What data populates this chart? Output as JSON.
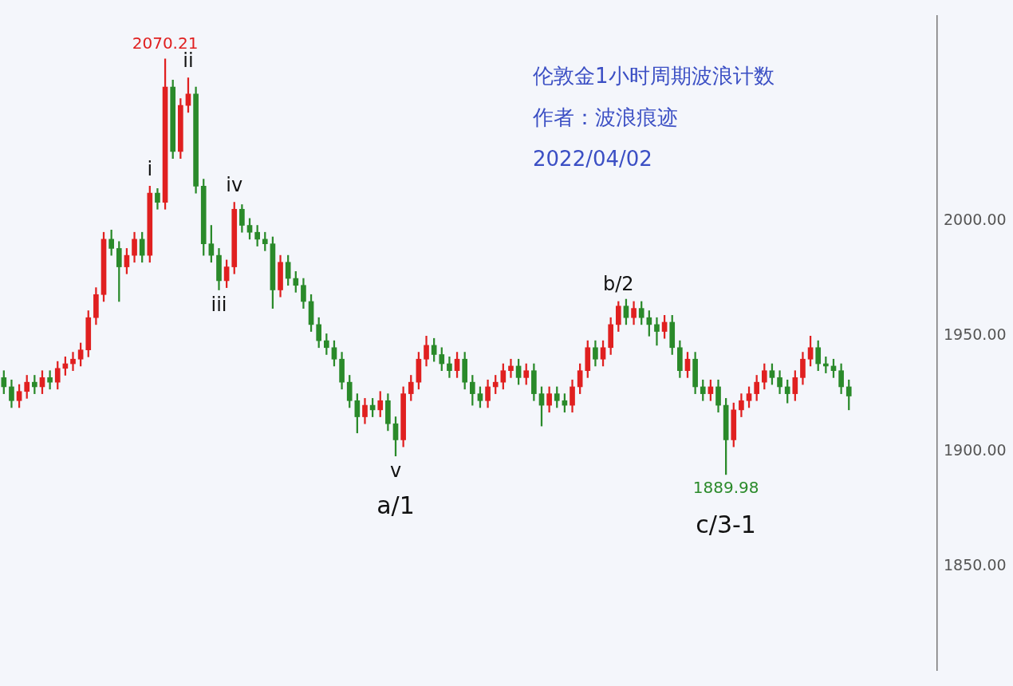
{
  "chart_data": {
    "type": "candlestick",
    "title": "伦敦金1小时周期波浪计数",
    "subtitle": "作者：波浪痕迹",
    "annotations": [
      "2022/04/02",
      {
        "text": "2070.21",
        "y": 2070.21
      },
      {
        "text": "i",
        "y": 2015
      },
      {
        "text": "ii",
        "y": 2062
      },
      {
        "text": "iii",
        "y": 1970
      },
      {
        "text": "iv",
        "y": 2008
      },
      {
        "text": "v",
        "y": 1898
      },
      {
        "text": "a/1",
        "y": 1898
      },
      {
        "text": "b/2",
        "y": 1965
      },
      {
        "text": "1889.98",
        "y": 1889.98
      },
      {
        "text": "c/3-1",
        "y": 1889.98
      }
    ],
    "categories": [
      null,
      null,
      null,
      null,
      null,
      null,
      null,
      null,
      null,
      null,
      null,
      null,
      null,
      null,
      null,
      null,
      null,
      null,
      null,
      null,
      null,
      null,
      null,
      null,
      null,
      null,
      null,
      null,
      null,
      null,
      null,
      null,
      null,
      null,
      null,
      null,
      null,
      null,
      null,
      null,
      null,
      null,
      null,
      null,
      null,
      null,
      null,
      null,
      null,
      null,
      null,
      null,
      null,
      null,
      null,
      null,
      null,
      null,
      null,
      null,
      null,
      null,
      null,
      null,
      null,
      null,
      null,
      null,
      null,
      null,
      null,
      null,
      null,
      null,
      null,
      null,
      null,
      null,
      null,
      null,
      null,
      null,
      null,
      null,
      null,
      null,
      null,
      null,
      null,
      null,
      null,
      null,
      null,
      null,
      null,
      null,
      null,
      null,
      null,
      null,
      null,
      null,
      null,
      null,
      null,
      null,
      null,
      null,
      null,
      null,
      null,
      null,
      null,
      null,
      null,
      null,
      null,
      null,
      null,
      null,
      null,
      null
    ],
    "ohlc": [
      [
        1932,
        1935,
        1925,
        1928
      ],
      [
        1928,
        1931,
        1919,
        1922
      ],
      [
        1922,
        1929,
        1919,
        1926
      ],
      [
        1926,
        1933,
        1923,
        1930
      ],
      [
        1930,
        1933,
        1925,
        1928
      ],
      [
        1928,
        1935,
        1925,
        1932
      ],
      [
        1932,
        1935,
        1927,
        1930
      ],
      [
        1930,
        1939,
        1927,
        1936
      ],
      [
        1936,
        1941,
        1933,
        1938
      ],
      [
        1938,
        1943,
        1935,
        1940
      ],
      [
        1940,
        1947,
        1937,
        1944
      ],
      [
        1944,
        1961,
        1941,
        1958
      ],
      [
        1958,
        1971,
        1955,
        1968
      ],
      [
        1968,
        1995,
        1965,
        1992
      ],
      [
        1992,
        1996,
        1985,
        1988
      ],
      [
        1988,
        1991,
        1965,
        1980
      ],
      [
        1980,
        1988,
        1977,
        1985
      ],
      [
        1985,
        1995,
        1982,
        1992
      ],
      [
        1992,
        1995,
        1982,
        1985
      ],
      [
        1985,
        2015,
        1982,
        2012
      ],
      [
        2012,
        2014,
        2005,
        2008
      ],
      [
        2008,
        2070.21,
        2005,
        2058
      ],
      [
        2058,
        2061,
        2027,
        2030
      ],
      [
        2030,
        2053,
        2027,
        2050
      ],
      [
        2050,
        2062,
        2047,
        2055
      ],
      [
        2055,
        2058,
        2012,
        2015
      ],
      [
        2015,
        2018,
        1985,
        1990
      ],
      [
        1990,
        1998,
        1982,
        1985
      ],
      [
        1985,
        1988,
        1970,
        1974
      ],
      [
        1974,
        1983,
        1971,
        1980
      ],
      [
        1980,
        2008,
        1977,
        2005
      ],
      [
        2005,
        2007,
        1995,
        1998
      ],
      [
        1998,
        2001,
        1992,
        1995
      ],
      [
        1995,
        1998,
        1989,
        1992
      ],
      [
        1992,
        1995,
        1987,
        1990
      ],
      [
        1990,
        1993,
        1962,
        1970
      ],
      [
        1970,
        1985,
        1967,
        1982
      ],
      [
        1982,
        1985,
        1972,
        1975
      ],
      [
        1975,
        1978,
        1969,
        1972
      ],
      [
        1972,
        1975,
        1962,
        1965
      ],
      [
        1965,
        1968,
        1952,
        1955
      ],
      [
        1955,
        1958,
        1945,
        1948
      ],
      [
        1948,
        1951,
        1942,
        1945
      ],
      [
        1945,
        1948,
        1937,
        1940
      ],
      [
        1940,
        1943,
        1927,
        1930
      ],
      [
        1930,
        1933,
        1919,
        1922
      ],
      [
        1922,
        1925,
        1908,
        1915
      ],
      [
        1915,
        1923,
        1912,
        1920
      ],
      [
        1920,
        1923,
        1915,
        1918
      ],
      [
        1918,
        1926,
        1915,
        1922
      ],
      [
        1922,
        1925,
        1909,
        1912
      ],
      [
        1912,
        1915,
        1898,
        1905
      ],
      [
        1905,
        1928,
        1902,
        1925
      ],
      [
        1925,
        1933,
        1922,
        1930
      ],
      [
        1930,
        1943,
        1927,
        1940
      ],
      [
        1940,
        1950,
        1937,
        1946
      ],
      [
        1946,
        1949,
        1939,
        1942
      ],
      [
        1942,
        1945,
        1935,
        1938
      ],
      [
        1938,
        1941,
        1932,
        1935
      ],
      [
        1935,
        1943,
        1932,
        1940
      ],
      [
        1940,
        1943,
        1927,
        1930
      ],
      [
        1930,
        1933,
        1920,
        1925
      ],
      [
        1925,
        1928,
        1919,
        1922
      ],
      [
        1922,
        1931,
        1919,
        1928
      ],
      [
        1928,
        1933,
        1925,
        1930
      ],
      [
        1930,
        1938,
        1927,
        1935
      ],
      [
        1935,
        1940,
        1932,
        1937
      ],
      [
        1937,
        1940,
        1929,
        1932
      ],
      [
        1932,
        1938,
        1929,
        1935
      ],
      [
        1935,
        1938,
        1922,
        1925
      ],
      [
        1925,
        1928,
        1911,
        1920
      ],
      [
        1920,
        1928,
        1917,
        1925
      ],
      [
        1925,
        1928,
        1919,
        1922
      ],
      [
        1922,
        1925,
        1917,
        1920
      ],
      [
        1920,
        1931,
        1917,
        1928
      ],
      [
        1928,
        1938,
        1925,
        1935
      ],
      [
        1935,
        1948,
        1932,
        1945
      ],
      [
        1945,
        1948,
        1937,
        1940
      ],
      [
        1940,
        1948,
        1937,
        1945
      ],
      [
        1945,
        1958,
        1942,
        1955
      ],
      [
        1955,
        1965,
        1952,
        1963
      ],
      [
        1963,
        1966,
        1955,
        1958
      ],
      [
        1958,
        1965,
        1955,
        1962
      ],
      [
        1962,
        1965,
        1955,
        1958
      ],
      [
        1958,
        1961,
        1950,
        1955
      ],
      [
        1955,
        1958,
        1946,
        1952
      ],
      [
        1952,
        1959,
        1949,
        1956
      ],
      [
        1956,
        1959,
        1942,
        1945
      ],
      [
        1945,
        1948,
        1932,
        1935
      ],
      [
        1935,
        1943,
        1932,
        1940
      ],
      [
        1940,
        1943,
        1925,
        1928
      ],
      [
        1928,
        1931,
        1922,
        1925
      ],
      [
        1925,
        1931,
        1922,
        1928
      ],
      [
        1928,
        1931,
        1917,
        1920
      ],
      [
        1920,
        1923,
        1889.98,
        1905
      ],
      [
        1905,
        1921,
        1902,
        1918
      ],
      [
        1918,
        1925,
        1915,
        1922
      ],
      [
        1922,
        1928,
        1919,
        1925
      ],
      [
        1925,
        1933,
        1922,
        1930
      ],
      [
        1930,
        1938,
        1927,
        1935
      ],
      [
        1935,
        1938,
        1929,
        1932
      ],
      [
        1932,
        1935,
        1925,
        1928
      ],
      [
        1928,
        1931,
        1921,
        1925
      ],
      [
        1925,
        1935,
        1922,
        1932
      ],
      [
        1932,
        1943,
        1929,
        1940
      ],
      [
        1940,
        1950,
        1937,
        1945
      ],
      [
        1945,
        1948,
        1935,
        1938
      ],
      [
        1938,
        1941,
        1934,
        1937
      ],
      [
        1937,
        1940,
        1932,
        1935
      ],
      [
        1935,
        1938,
        1925,
        1928
      ],
      [
        1928,
        1931,
        1918,
        1924
      ],
      null,
      null,
      null,
      null,
      null,
      null,
      null,
      null,
      null,
      null,
      null
    ],
    "colors": [
      "#2a8a2a",
      "#2a8a2a",
      "#e02020",
      "#e02020",
      "#2a8a2a",
      "#e02020",
      "#2a8a2a",
      "#e02020",
      "#e02020",
      "#e02020",
      "#e02020",
      "#e02020",
      "#e02020",
      "#e02020",
      "#2a8a2a",
      "#2a8a2a",
      "#e02020",
      "#e02020",
      "#2a8a2a",
      "#e02020",
      "#2a8a2a",
      "#e02020",
      "#2a8a2a",
      "#e02020",
      "#e02020",
      "#2a8a2a",
      "#2a8a2a",
      "#2a8a2a",
      "#2a8a2a",
      "#e02020",
      "#e02020",
      "#2a8a2a",
      "#2a8a2a",
      "#2a8a2a",
      "#2a8a2a",
      "#2a8a2a",
      "#e02020",
      "#2a8a2a",
      "#2a8a2a",
      "#2a8a2a",
      "#2a8a2a",
      "#2a8a2a",
      "#2a8a2a",
      "#2a8a2a",
      "#2a8a2a",
      "#2a8a2a",
      "#2a8a2a",
      "#e02020",
      "#2a8a2a",
      "#e02020",
      "#2a8a2a",
      "#2a8a2a",
      "#e02020",
      "#e02020",
      "#e02020",
      "#e02020",
      "#2a8a2a",
      "#2a8a2a",
      "#2a8a2a",
      "#e02020",
      "#2a8a2a",
      "#2a8a2a",
      "#2a8a2a",
      "#e02020",
      "#e02020",
      "#e02020",
      "#e02020",
      "#2a8a2a",
      "#e02020",
      "#2a8a2a",
      "#2a8a2a",
      "#e02020",
      "#2a8a2a",
      "#2a8a2a",
      "#e02020",
      "#e02020",
      "#e02020",
      "#2a8a2a",
      "#e02020",
      "#e02020",
      "#e02020",
      "#2a8a2a",
      "#e02020",
      "#2a8a2a",
      "#2a8a2a",
      "#2a8a2a",
      "#e02020",
      "#2a8a2a",
      "#2a8a2a",
      "#e02020",
      "#2a8a2a",
      "#2a8a2a",
      "#e02020",
      "#2a8a2a",
      "#2a8a2a",
      "#e02020",
      "#e02020",
      "#e02020",
      "#e02020",
      "#e02020",
      "#2a8a2a",
      "#2a8a2a",
      "#2a8a2a",
      "#e02020",
      "#e02020",
      "#e02020",
      "#2a8a2a",
      "#2a8a2a",
      "#2a8a2a",
      "#2a8a2a",
      "#2a8a2a",
      null,
      null,
      null,
      null,
      null,
      null,
      null,
      null,
      null,
      null,
      null
    ],
    "ylim": [
      1805,
      2089
    ],
    "yticks": [
      {
        "value": 1850,
        "label": "1850.00"
      },
      {
        "value": 1900,
        "label": "1900.00"
      },
      {
        "value": 1950,
        "label": "1950.00"
      },
      {
        "value": 2000,
        "label": "2000.00"
      }
    ],
    "grid": false,
    "legend": false,
    "tick_labels": "y"
  }
}
